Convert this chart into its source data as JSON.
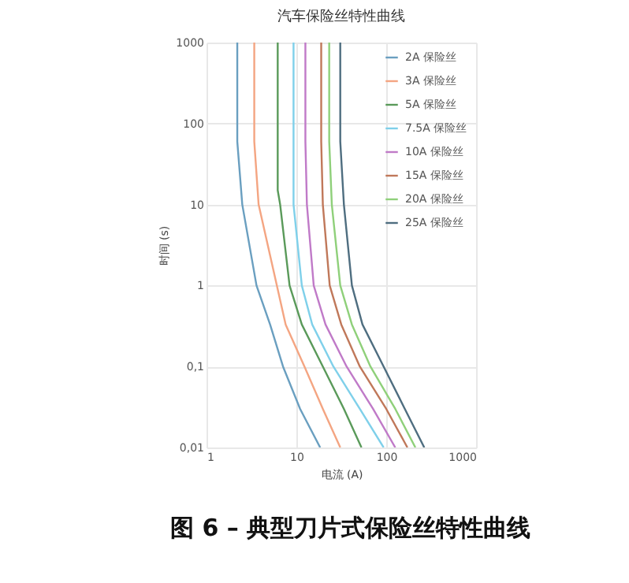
{
  "chart_data": {
    "type": "line",
    "title": "汽车保险丝特性曲线",
    "xlabel": "电流 (A)",
    "ylabel": "时间 (s)",
    "log": "xy",
    "xlim": [
      1,
      1000
    ],
    "ylim": [
      0.01,
      1000
    ],
    "xticks": [
      1,
      10,
      100,
      1000
    ],
    "yticks": [
      {
        "value": 0.01,
        "label": "0,01"
      },
      {
        "value": 0.1,
        "label": "0,1"
      },
      1,
      10,
      100,
      1000
    ],
    "grid": true,
    "legend": "top right",
    "marker": "none",
    "line_style": "solid",
    "annotations": [
      "图 6 – 典型刀片式保险丝特性曲线"
    ],
    "series": [
      {
        "name": "2A 保险丝",
        "color": "#6a9fc0",
        "x": [
          2.2,
          2.2,
          2.5,
          3.6,
          5.1,
          7.1,
          11,
          18.4
        ],
        "values": [
          1000,
          60,
          10,
          1,
          0.33,
          0.1,
          0.03,
          0.01
        ]
      },
      {
        "name": "3A 保险丝",
        "color": "#f4a582",
        "x": [
          3.4,
          3.4,
          3.8,
          7.6,
          12.3,
          19.7,
          30.8
        ],
        "values": [
          1000,
          60,
          10,
          0.33,
          0.1,
          0.03,
          0.01
        ]
      },
      {
        "name": "5A 保险丝",
        "color": "#5a9a5a",
        "x": [
          6.2,
          6.2,
          6.6,
          8.4,
          11.5,
          19.7,
          33.8,
          53
        ],
        "values": [
          1000,
          15,
          10,
          1,
          0.33,
          0.1,
          0.03,
          0.01
        ]
      },
      {
        "name": "7.5A 保险丝",
        "color": "#7fd0ea",
        "x": [
          9.3,
          9.3,
          11.5,
          15,
          25.8,
          50.8,
          93.5
        ],
        "values": [
          1000,
          10,
          1,
          0.33,
          0.1,
          0.03,
          0.01
        ]
      },
      {
        "name": "10A 保险丝",
        "color": "#c07ac8",
        "x": [
          12.6,
          12.6,
          13.1,
          15.6,
          21.1,
          36.2,
          71.3,
          126
        ],
        "values": [
          1000,
          60,
          10,
          1,
          0.33,
          0.1,
          0.03,
          0.01
        ]
      },
      {
        "name": "15A 保险丝",
        "color": "#c0785a",
        "x": [
          18.9,
          18.9,
          19.7,
          23.5,
          31.6,
          50.8,
          100,
          172
        ],
        "values": [
          1000,
          60,
          10,
          1,
          0.33,
          0.1,
          0.03,
          0.01
        ]
      },
      {
        "name": "20A 保险丝",
        "color": "#8fd07a",
        "x": [
          23.2,
          23.2,
          24.8,
          30.8,
          41.5,
          66.7,
          126,
          211
        ],
        "values": [
          1000,
          60,
          10,
          1,
          0.33,
          0.1,
          0.03,
          0.01
        ]
      },
      {
        "name": "25A 保险丝",
        "color": "#4f6e80",
        "x": [
          30.8,
          30.8,
          33.8,
          41.5,
          54.4,
          93.5,
          161,
          265
        ],
        "values": [
          1000,
          60,
          10,
          1,
          0.33,
          0.1,
          0.03,
          0.01
        ]
      }
    ]
  }
}
